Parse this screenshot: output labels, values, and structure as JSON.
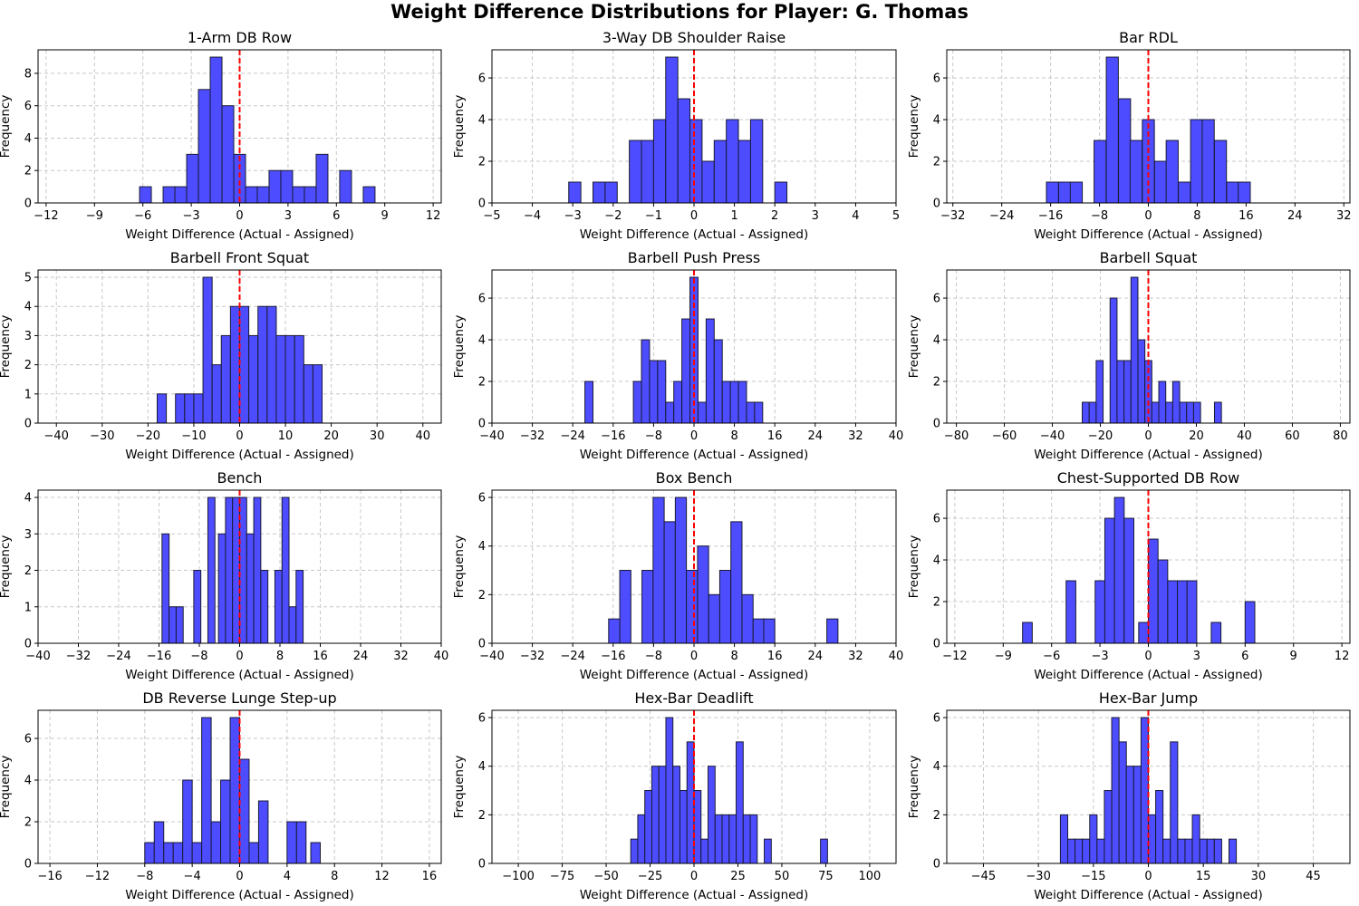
{
  "suptitle": "Weight Difference Distributions for Player: G. Thomas",
  "colors": {
    "bar_fill": "#4d4dff",
    "bar_edge": "#1a1a33",
    "ref_line": "#ff0000",
    "grid": "#c8c8c8"
  },
  "chart_data": [
    {
      "type": "bar",
      "title": "1-Arm DB Row",
      "xlabel": "Weight Difference (Actual - Assigned)",
      "ylabel": "Frequency",
      "xlim": [
        -12.5,
        12.5
      ],
      "ylim": [
        0,
        9.45
      ],
      "xticks": [
        -12,
        -9,
        -6,
        -3,
        0,
        3,
        6,
        9,
        12
      ],
      "yticks": [
        0,
        2,
        4,
        6,
        8
      ],
      "grid": true,
      "ref_line_x": 0,
      "bin_width": 0.73,
      "x": [
        -5.84,
        -4.38,
        -3.65,
        -2.92,
        -2.19,
        -1.46,
        -0.73,
        0.0,
        0.73,
        1.46,
        2.19,
        2.92,
        3.65,
        4.38,
        5.11,
        6.57,
        8.03
      ],
      "values": [
        1,
        1,
        1,
        3,
        7,
        9,
        6,
        3,
        1,
        1,
        2,
        2,
        1,
        1,
        3,
        2,
        1
      ]
    },
    {
      "type": "bar",
      "title": "3-Way DB Shoulder Raise",
      "xlabel": "Weight Difference (Actual - Assigned)",
      "ylabel": "Frequency",
      "xlim": [
        -5,
        5
      ],
      "ylim": [
        0,
        7.35
      ],
      "xticks": [
        -5,
        -4,
        -3,
        -2,
        -1,
        0,
        1,
        2,
        3,
        4,
        5
      ],
      "yticks": [
        0,
        2,
        4,
        6
      ],
      "grid": true,
      "ref_line_x": 0,
      "bin_width": 0.3,
      "x": [
        -2.95,
        -2.35,
        -2.05,
        -1.45,
        -1.15,
        -0.85,
        -0.55,
        -0.25,
        0.05,
        0.35,
        0.65,
        0.95,
        1.25,
        1.55,
        2.15
      ],
      "values": [
        1,
        1,
        1,
        3,
        3,
        4,
        7,
        5,
        4,
        2,
        3,
        4,
        3,
        4,
        1
      ]
    },
    {
      "type": "bar",
      "title": "Bar RDL",
      "xlabel": "Weight Difference (Actual - Assigned)",
      "ylabel": "Frequency",
      "xlim": [
        -33,
        33
      ],
      "ylim": [
        0,
        7.35
      ],
      "xticks": [
        -32,
        -24,
        -16,
        -8,
        0,
        8,
        16,
        24,
        32
      ],
      "yticks": [
        0,
        2,
        4,
        6
      ],
      "grid": true,
      "ref_line_x": 0,
      "bin_width": 1.97,
      "x": [
        -15.7,
        -13.7,
        -11.8,
        -7.9,
        -5.9,
        -3.9,
        -2.0,
        0.0,
        2.0,
        3.9,
        5.9,
        7.9,
        9.8,
        11.8,
        13.8,
        15.7
      ],
      "values": [
        1,
        1,
        1,
        3,
        7,
        5,
        3,
        4,
        2,
        3,
        1,
        4,
        4,
        3,
        1,
        1
      ]
    },
    {
      "type": "bar",
      "title": "Barbell Front Squat",
      "xlabel": "Weight Difference (Actual - Assigned)",
      "ylabel": "Frequency",
      "xlim": [
        -44,
        44
      ],
      "ylim": [
        0,
        5.25
      ],
      "xticks": [
        -40,
        -30,
        -20,
        -10,
        0,
        10,
        20,
        30,
        40
      ],
      "yticks": [
        0,
        1,
        2,
        3,
        4,
        5
      ],
      "grid": true,
      "ref_line_x": 0,
      "bin_width": 2.0,
      "x": [
        -17.0,
        -13.0,
        -11.0,
        -9.0,
        -7.0,
        -5.0,
        -3.0,
        -1.0,
        1.0,
        3.0,
        5.0,
        7.0,
        9.0,
        11.0,
        13.0,
        15.0,
        17.0
      ],
      "values": [
        1,
        1,
        1,
        1,
        5,
        2,
        3,
        4,
        4,
        3,
        4,
        4,
        3,
        3,
        3,
        2,
        2
      ]
    },
    {
      "type": "bar",
      "title": "Barbell Push Press",
      "xlabel": "Weight Difference (Actual - Assigned)",
      "ylabel": "Frequency",
      "xlim": [
        -40,
        40
      ],
      "ylim": [
        0,
        7.35
      ],
      "xticks": [
        -40,
        -32,
        -24,
        -16,
        -8,
        0,
        8,
        16,
        24,
        32,
        40
      ],
      "yticks": [
        0,
        2,
        4,
        6
      ],
      "grid": true,
      "ref_line_x": 0,
      "bin_width": 1.6,
      "x": [
        -20.8,
        -11.2,
        -9.6,
        -8.0,
        -6.4,
        -4.8,
        -3.2,
        -1.6,
        0.0,
        1.6,
        3.2,
        4.8,
        6.4,
        8.0,
        9.6,
        11.2,
        12.8
      ],
      "values": [
        2,
        2,
        4,
        3,
        3,
        1,
        2,
        5,
        7,
        1,
        5,
        4,
        2,
        2,
        2,
        1,
        1
      ]
    },
    {
      "type": "bar",
      "title": "Barbell Squat",
      "xlabel": "Weight Difference (Actual - Assigned)",
      "ylabel": "Frequency",
      "xlim": [
        -84,
        84
      ],
      "ylim": [
        0,
        7.35
      ],
      "xticks": [
        -80,
        -60,
        -40,
        -20,
        0,
        20,
        40,
        60,
        80
      ],
      "yticks": [
        0,
        2,
        4,
        6
      ],
      "grid": true,
      "ref_line_x": 0,
      "bin_width": 2.9,
      "x": [
        -26.1,
        -23.2,
        -20.3,
        -14.5,
        -11.6,
        -8.7,
        -5.8,
        -2.9,
        0.0,
        2.9,
        5.8,
        8.7,
        11.6,
        14.5,
        17.4,
        20.3,
        29.0
      ],
      "values": [
        1,
        1,
        3,
        6,
        3,
        3,
        7,
        4,
        3,
        1,
        2,
        1,
        2,
        1,
        1,
        1,
        1
      ]
    },
    {
      "type": "bar",
      "title": "Bench",
      "xlabel": "Weight Difference (Actual - Assigned)",
      "ylabel": "Frequency",
      "xlim": [
        -40,
        40
      ],
      "ylim": [
        0,
        4.2
      ],
      "xticks": [
        -40,
        -32,
        -24,
        -16,
        -8,
        0,
        8,
        16,
        24,
        32,
        40
      ],
      "yticks": [
        0,
        1,
        2,
        3,
        4
      ],
      "grid": true,
      "ref_line_x": 0,
      "bin_width": 1.4,
      "x": [
        -14.7,
        -13.3,
        -11.9,
        -8.4,
        -5.6,
        -3.5,
        -2.1,
        -0.7,
        0.7,
        2.1,
        3.5,
        4.9,
        7.7,
        9.1,
        10.5,
        11.9
      ],
      "values": [
        3,
        1,
        1,
        2,
        4,
        3,
        4,
        4,
        4,
        3,
        4,
        2,
        2,
        4,
        1,
        2
      ]
    },
    {
      "type": "bar",
      "title": "Box Bench",
      "xlabel": "Weight Difference (Actual - Assigned)",
      "ylabel": "Frequency",
      "xlim": [
        -40,
        40
      ],
      "ylim": [
        0,
        6.3
      ],
      "xticks": [
        -40,
        -32,
        -24,
        -16,
        -8,
        0,
        8,
        16,
        24,
        32,
        40
      ],
      "yticks": [
        0,
        2,
        4,
        6
      ],
      "grid": true,
      "ref_line_x": 0,
      "bin_width": 2.2,
      "x": [
        -15.8,
        -13.6,
        -9.2,
        -7.0,
        -4.8,
        -2.6,
        -0.4,
        1.8,
        4.0,
        6.2,
        8.4,
        10.6,
        12.8,
        14.9,
        27.4
      ],
      "values": [
        1,
        3,
        3,
        6,
        5,
        6,
        3,
        4,
        2,
        3,
        5,
        2,
        1,
        1,
        1
      ]
    },
    {
      "type": "bar",
      "title": "Chest-Supported DB Row",
      "xlabel": "Weight Difference (Actual - Assigned)",
      "ylabel": "Frequency",
      "xlim": [
        -12.5,
        12.5
      ],
      "ylim": [
        0,
        7.35
      ],
      "xticks": [
        -12,
        -9,
        -6,
        -3,
        0,
        3,
        6,
        9,
        12
      ],
      "yticks": [
        0,
        2,
        4,
        6
      ],
      "grid": true,
      "ref_line_x": 0,
      "bin_width": 0.6,
      "x": [
        -7.5,
        -4.8,
        -3.0,
        -2.4,
        -1.8,
        -1.2,
        -0.3,
        0.3,
        0.9,
        1.5,
        2.1,
        2.7,
        4.2,
        6.3
      ],
      "values": [
        1,
        3,
        3,
        6,
        7,
        6,
        1,
        5,
        4,
        3,
        3,
        3,
        1,
        2
      ]
    },
    {
      "type": "bar",
      "title": "DB Reverse Lunge Step-up",
      "xlabel": "Weight Difference (Actual - Assigned)",
      "ylabel": "Frequency",
      "xlim": [
        -17,
        17
      ],
      "ylim": [
        0,
        7.35
      ],
      "xticks": [
        -16,
        -12,
        -8,
        -4,
        0,
        4,
        8,
        12,
        16
      ],
      "yticks": [
        0,
        2,
        4,
        6
      ],
      "grid": true,
      "ref_line_x": 0,
      "bin_width": 0.8,
      "x": [
        -7.6,
        -6.8,
        -6.0,
        -5.2,
        -4.4,
        -3.6,
        -2.8,
        -2.0,
        -1.2,
        -0.4,
        0.4,
        1.2,
        2.0,
        4.4,
        5.2,
        6.4
      ],
      "values": [
        1,
        2,
        1,
        1,
        4,
        1,
        7,
        2,
        4,
        7,
        5,
        1,
        3,
        2,
        2,
        1
      ]
    },
    {
      "type": "bar",
      "title": "Hex-Bar Deadlift",
      "xlabel": "Weight Difference (Actual - Assigned)",
      "ylabel": "Frequency",
      "xlim": [
        -115,
        115
      ],
      "ylim": [
        0,
        6.3
      ],
      "xticks": [
        -100,
        -75,
        -50,
        -25,
        0,
        25,
        50,
        75,
        100
      ],
      "yticks": [
        0,
        2,
        4,
        6
      ],
      "grid": true,
      "ref_line_x": 0,
      "bin_width": 4.0,
      "x": [
        -34,
        -30,
        -26,
        -22,
        -18,
        -14,
        -10,
        -6,
        -2,
        2,
        6,
        10,
        14,
        18,
        22,
        26,
        30,
        34,
        42,
        74
      ],
      "values": [
        1,
        2,
        3,
        4,
        4,
        6,
        4,
        3,
        5,
        3,
        1,
        4,
        2,
        2,
        2,
        5,
        2,
        2,
        1,
        1
      ]
    },
    {
      "type": "bar",
      "title": "Hex-Bar Jump",
      "xlabel": "Weight Difference (Actual - Assigned)",
      "ylabel": "Frequency",
      "xlim": [
        -55,
        55
      ],
      "ylim": [
        0,
        6.3
      ],
      "xticks": [
        -45,
        -30,
        -15,
        0,
        15,
        30,
        45
      ],
      "yticks": [
        0,
        2,
        4,
        6
      ],
      "grid": true,
      "ref_line_x": 0,
      "bin_width": 2.0,
      "x": [
        -23,
        -21,
        -19,
        -17,
        -15,
        -13,
        -11,
        -9,
        -7,
        -5,
        -3,
        -1,
        1,
        3,
        5,
        7,
        9,
        11,
        13,
        15,
        17,
        19,
        23
      ],
      "values": [
        2,
        1,
        1,
        1,
        2,
        1,
        3,
        6,
        5,
        4,
        4,
        6,
        2,
        3,
        1,
        5,
        1,
        1,
        2,
        1,
        1,
        1,
        1
      ]
    }
  ]
}
